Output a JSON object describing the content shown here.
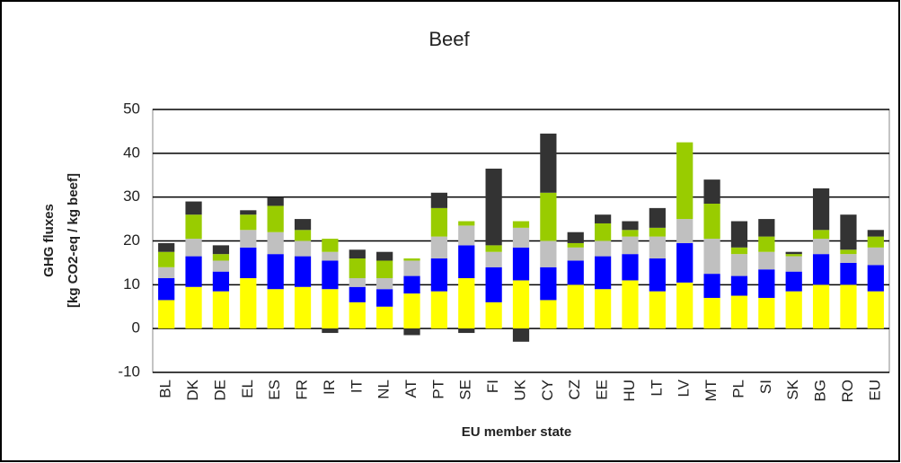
{
  "chart_data": {
    "type": "stacked_bar",
    "title": "Beef",
    "x_label": "EU member state",
    "y_label": [
      "GHG fluxes",
      "[kg CO2-eq / kg beef]"
    ],
    "categories": [
      "BL",
      "DK",
      "DE",
      "EL",
      "ES",
      "FR",
      "IR",
      "IT",
      "NL",
      "AT",
      "PT",
      "SE",
      "FI",
      "UK",
      "CY",
      "CZ",
      "EE",
      "HU",
      "LT",
      "LV",
      "MT",
      "PL",
      "SI",
      "SK",
      "BG",
      "RO",
      "EU"
    ],
    "series": [
      {
        "color": "#ffff00",
        "values": [
          6.5,
          9.5,
          8.5,
          11.5,
          9,
          9.5,
          9,
          6,
          5,
          8,
          8.5,
          11.5,
          6,
          11,
          6.5,
          10,
          9,
          11,
          8.5,
          10.5,
          7,
          7.5,
          7,
          8.5,
          10,
          10,
          8.5
        ]
      },
      {
        "color": "#0000ff",
        "values": [
          5,
          7,
          4.5,
          7,
          8,
          7,
          6.5,
          3.5,
          4,
          4,
          7.5,
          7.5,
          8,
          7.5,
          7.5,
          5.5,
          7.5,
          6,
          7.5,
          9,
          5.5,
          4.5,
          6.5,
          4.5,
          7,
          5,
          6
        ]
      },
      {
        "color": "#c0c0c0",
        "values": [
          2.5,
          4,
          2.5,
          4,
          5,
          3.5,
          2,
          2,
          2.5,
          3.5,
          5,
          4.5,
          3.5,
          4.5,
          6,
          3,
          3.5,
          4,
          5,
          5.5,
          8,
          5,
          4,
          3.5,
          3.5,
          2,
          4
        ]
      },
      {
        "color": "#99cc00",
        "values": [
          3.5,
          5.5,
          1.5,
          3.5,
          6,
          2.5,
          3,
          4.5,
          4,
          0.5,
          6.5,
          1,
          1.5,
          1.5,
          11,
          1,
          4,
          1.5,
          2,
          17.5,
          8,
          1.5,
          3.5,
          0.5,
          2,
          1,
          2.5
        ]
      },
      {
        "color": "#333333",
        "values": [
          2,
          3,
          2,
          1,
          2,
          2.5,
          -1,
          2,
          2,
          -1.5,
          3.5,
          -1,
          17.5,
          -3,
          13.5,
          2.5,
          2,
          2,
          4.5,
          0,
          5.5,
          6,
          4,
          0.5,
          9.5,
          8,
          1.5
        ]
      }
    ],
    "ylim": [
      -10,
      50
    ],
    "yticks": [
      -10,
      0,
      10,
      20,
      30,
      40,
      50
    ],
    "grid": true
  }
}
